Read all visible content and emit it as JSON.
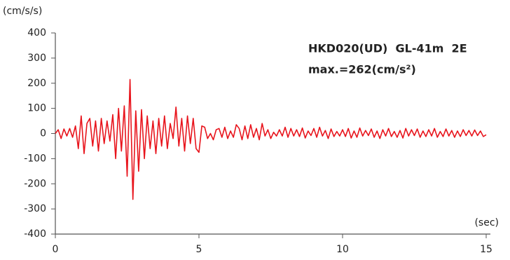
{
  "chart_data": {
    "type": "line",
    "y_label": "(cm/s/s)",
    "x_label": "(sec)",
    "annotations": [
      "HKD020(UD)  GL-41m  2E",
      "max.=262(cm/s²)"
    ],
    "color": "#e8141c",
    "xlim": [
      0,
      15
    ],
    "xticks": [
      0,
      5,
      10,
      15
    ],
    "ylim": [
      -400,
      400
    ],
    "yticks": [
      -400,
      -300,
      -200,
      -100,
      0,
      100,
      200,
      300,
      400
    ],
    "grid": false,
    "x": [
      0,
      0.1,
      0.2,
      0.3,
      0.4,
      0.5,
      0.6,
      0.7,
      0.8,
      0.9,
      1,
      1.1,
      1.2,
      1.3,
      1.4,
      1.5,
      1.6,
      1.7,
      1.8,
      1.9,
      2,
      2.1,
      2.2,
      2.3,
      2.4,
      2.5,
      2.6,
      2.7,
      2.8,
      2.9,
      3,
      3.1,
      3.2,
      3.3,
      3.4,
      3.5,
      3.6,
      3.7,
      3.8,
      3.9,
      4,
      4.1,
      4.2,
      4.3,
      4.4,
      4.5,
      4.6,
      4.7,
      4.8,
      4.9,
      5,
      5.1,
      5.2,
      5.3,
      5.4,
      5.5,
      5.6,
      5.7,
      5.8,
      5.9,
      6,
      6.1,
      6.2,
      6.3,
      6.4,
      6.5,
      6.6,
      6.7,
      6.8,
      6.9,
      7,
      7.1,
      7.2,
      7.3,
      7.4,
      7.5,
      7.6,
      7.7,
      7.8,
      7.9,
      8,
      8.1,
      8.2,
      8.3,
      8.4,
      8.5,
      8.6,
      8.7,
      8.8,
      8.9,
      9,
      9.1,
      9.2,
      9.3,
      9.4,
      9.5,
      9.6,
      9.7,
      9.8,
      9.9,
      10,
      10.1,
      10.2,
      10.3,
      10.4,
      10.5,
      10.6,
      10.7,
      10.8,
      10.9,
      11,
      11.1,
      11.2,
      11.3,
      11.4,
      11.5,
      11.6,
      11.7,
      11.8,
      11.9,
      12,
      12.1,
      12.2,
      12.3,
      12.4,
      12.5,
      12.6,
      12.7,
      12.8,
      12.9,
      13,
      13.1,
      13.2,
      13.3,
      13.4,
      13.5,
      13.6,
      13.7,
      13.8,
      13.9,
      14,
      14.1,
      14.2,
      14.3,
      14.4,
      14.5,
      14.6,
      14.7,
      14.8,
      14.9,
      15
    ],
    "values": [
      0,
      15,
      -20,
      18,
      -10,
      20,
      -15,
      30,
      -60,
      70,
      -80,
      40,
      60,
      -50,
      50,
      -70,
      60,
      -40,
      50,
      -30,
      75,
      -100,
      100,
      -70,
      110,
      -170,
      215,
      -262,
      90,
      -150,
      95,
      -100,
      70,
      -60,
      50,
      -80,
      60,
      -50,
      70,
      -60,
      40,
      -20,
      105,
      -50,
      60,
      -70,
      70,
      -40,
      60,
      -60,
      -75,
      30,
      25,
      -20,
      0,
      -25,
      15,
      20,
      -15,
      25,
      -20,
      10,
      -15,
      35,
      20,
      -25,
      30,
      -20,
      35,
      -15,
      20,
      -25,
      40,
      -10,
      15,
      -20,
      5,
      -10,
      15,
      -10,
      25,
      -15,
      20,
      -10,
      15,
      -12,
      22,
      -18,
      10,
      -8,
      20,
      -15,
      25,
      -10,
      12,
      -20,
      18,
      -12,
      8,
      -10,
      15,
      -12,
      20,
      -18,
      10,
      -15,
      22,
      -10,
      12,
      -8,
      18,
      -15,
      10,
      -20,
      15,
      -10,
      20,
      -12,
      8,
      -15,
      12,
      -18,
      20,
      -10,
      15,
      -8,
      18,
      -15,
      10,
      -12,
      15,
      -10,
      20,
      -15,
      8,
      -12,
      18,
      -10,
      12,
      -15,
      10,
      -12,
      15,
      -8,
      12,
      -10,
      14,
      -8,
      10,
      -12,
      -5
    ]
  }
}
